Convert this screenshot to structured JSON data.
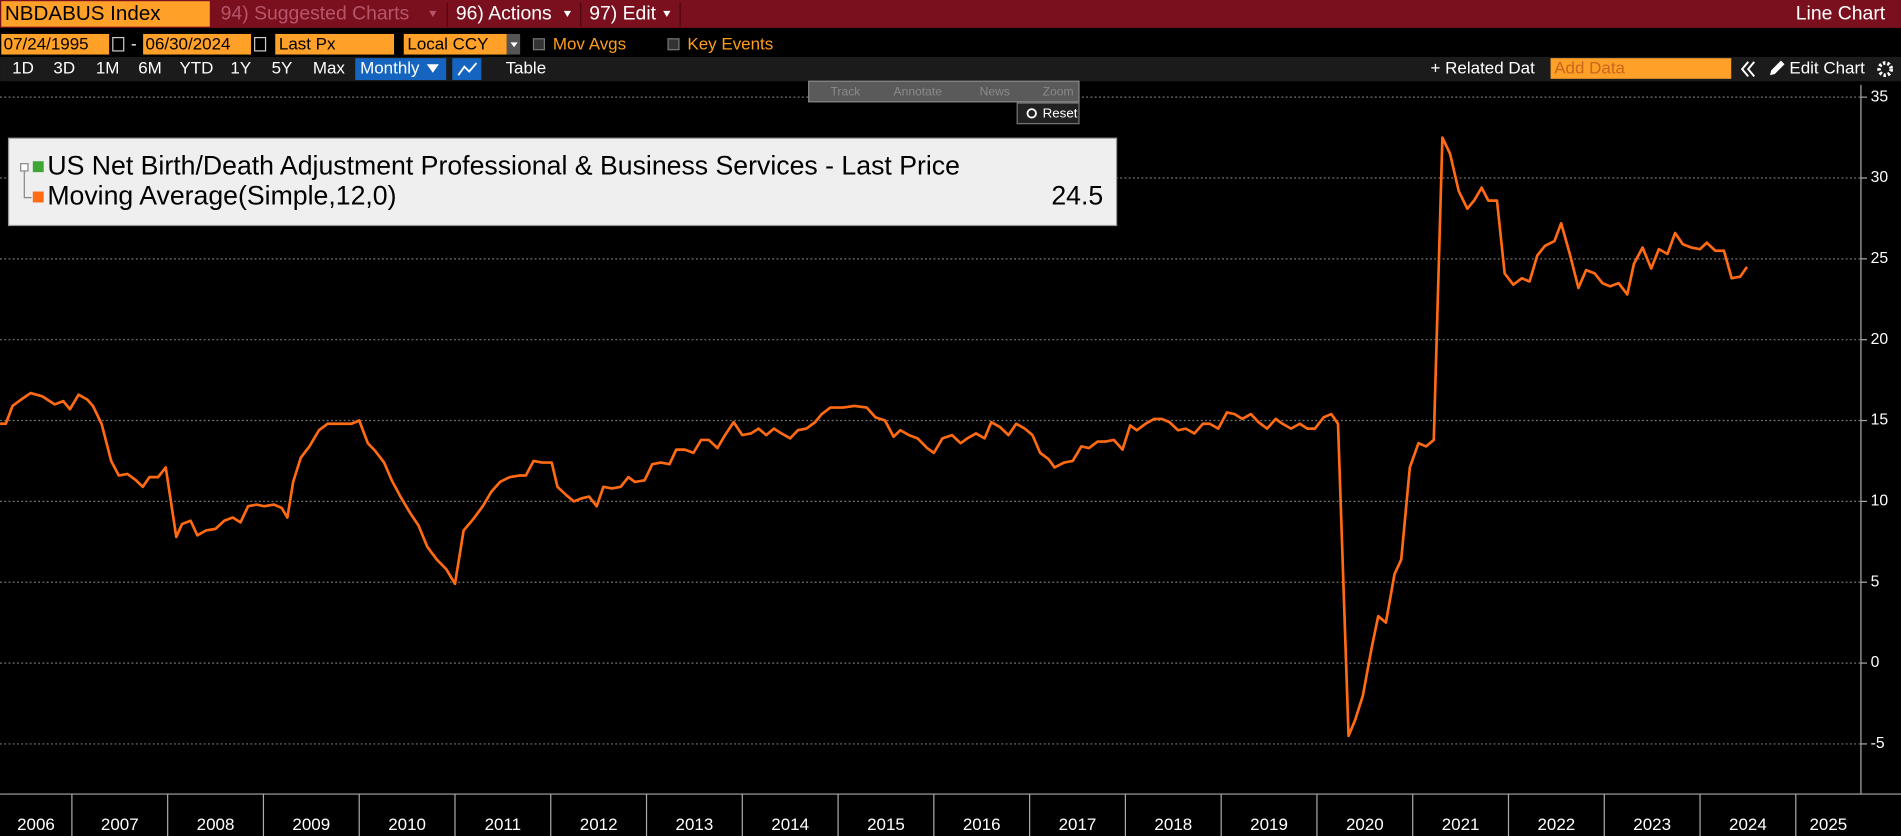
{
  "toolbar": {
    "ticker": "NBDABUS Index",
    "menus": [
      "94) Suggested Charts",
      "96) Actions",
      "97) Edit"
    ],
    "view": "Line Chart",
    "start_date": "07/24/1995",
    "date_sep": "-",
    "end_date": "06/30/2024",
    "field": "Last Px",
    "currency": "Local CCY",
    "options": [
      "Mov Avgs",
      "Key Events"
    ],
    "periods": [
      "1D",
      "3D",
      "1M",
      "6M",
      "YTD",
      "1Y",
      "5Y",
      "Max"
    ],
    "frequency": "Monthly",
    "table": "Table",
    "related": "+ Related Dat",
    "add_data": "Add Data",
    "edit_chart": "Edit Chart",
    "tools": [
      "Track",
      "Annotate",
      "News",
      "Zoom"
    ],
    "reset": "Reset"
  },
  "chart_data": {
    "type": "line",
    "legend_title": "US Net Birth/Death Adjustment Professional & Business Services - Last Price",
    "legend_title_color": "#3fa535",
    "last_value": 24.5,
    "x": [
      2006.25,
      2006.31,
      2006.38,
      2006.47,
      2006.57,
      2006.69,
      2006.82,
      2006.91,
      2006.98,
      2007.07,
      2007.16,
      2007.22,
      2007.31,
      2007.41,
      2007.49,
      2007.58,
      2007.67,
      2007.74,
      2007.81,
      2007.9,
      2007.98,
      2008.09,
      2008.15,
      2008.24,
      2008.31,
      2008.4,
      2008.5,
      2008.59,
      2008.68,
      2008.76,
      2008.84,
      2008.93,
      2009.01,
      2009.11,
      2009.19,
      2009.25,
      2009.31,
      2009.39,
      2009.48,
      2009.58,
      2009.67,
      2009.79,
      2009.92,
      2010.0,
      2010.09,
      2010.17,
      2010.26,
      2010.34,
      2010.43,
      2010.53,
      2010.62,
      2010.71,
      2010.81,
      2010.91,
      2011.0,
      2011.09,
      2011.19,
      2011.29,
      2011.38,
      2011.47,
      2011.57,
      2011.67,
      2011.74,
      2011.82,
      2011.91,
      2012.01,
      2012.07,
      2012.16,
      2012.24,
      2012.33,
      2012.4,
      2012.48,
      2012.55,
      2012.64,
      2012.73,
      2012.81,
      2012.88,
      2012.98,
      2013.06,
      2013.15,
      2013.24,
      2013.31,
      2013.4,
      2013.49,
      2013.57,
      2013.65,
      2013.74,
      2013.82,
      2013.91,
      2014.0,
      2014.09,
      2014.17,
      2014.25,
      2014.33,
      2014.41,
      2014.5,
      2014.58,
      2014.67,
      2014.76,
      2014.83,
      2014.92,
      2015.05,
      2015.17,
      2015.3,
      2015.39,
      2015.49,
      2015.58,
      2015.65,
      2015.74,
      2015.83,
      2015.93,
      2016.0,
      2016.09,
      2016.19,
      2016.28,
      2016.35,
      2016.44,
      2016.53,
      2016.6,
      2016.69,
      2016.78,
      2016.86,
      2016.95,
      2017.03,
      2017.11,
      2017.2,
      2017.26,
      2017.36,
      2017.45,
      2017.54,
      2017.62,
      2017.71,
      2017.79,
      2017.88,
      2017.97,
      2018.05,
      2018.12,
      2018.21,
      2018.3,
      2018.38,
      2018.46,
      2018.55,
      2018.63,
      2018.72,
      2018.81,
      2018.88,
      2018.97,
      2019.06,
      2019.14,
      2019.22,
      2019.31,
      2019.39,
      2019.48,
      2019.57,
      2019.64,
      2019.73,
      2019.82,
      2019.9,
      2019.98,
      2020.07,
      2020.15,
      2020.22,
      2020.33,
      2020.4,
      2020.48,
      2020.57,
      2020.64,
      2020.72,
      2020.81,
      2020.88,
      2020.97,
      2021.06,
      2021.14,
      2021.22,
      2021.31,
      2021.39,
      2021.48,
      2021.57,
      2021.64,
      2021.72,
      2021.79,
      2021.88,
      2021.96,
      2022.05,
      2022.14,
      2022.22,
      2022.3,
      2022.38,
      2022.48,
      2022.55,
      2022.64,
      2022.73,
      2022.81,
      2022.9,
      2022.98,
      2023.06,
      2023.15,
      2023.24,
      2023.31,
      2023.4,
      2023.49,
      2023.57,
      2023.66,
      2023.74,
      2023.82,
      2023.91,
      2024.0,
      2024.07,
      2024.16,
      2024.25,
      2024.33,
      2024.42,
      2024.49
    ],
    "series": [
      {
        "name": "Moving Average(Simple,12,0)",
        "color": "#ff6a13",
        "values": [
          14.8,
          14.8,
          15.9,
          16.3,
          16.7,
          16.5,
          16.0,
          16.2,
          15.7,
          16.6,
          16.3,
          15.9,
          14.8,
          12.5,
          11.6,
          11.7,
          11.3,
          10.9,
          11.5,
          11.5,
          12.1,
          7.8,
          8.6,
          8.8,
          7.9,
          8.2,
          8.3,
          8.8,
          9.0,
          8.7,
          9.7,
          9.8,
          9.7,
          9.8,
          9.6,
          9.0,
          11.2,
          12.7,
          13.4,
          14.4,
          14.8,
          14.8,
          14.8,
          15.0,
          13.6,
          13.1,
          12.4,
          11.3,
          10.3,
          9.3,
          8.5,
          7.2,
          6.4,
          5.8,
          4.9,
          8.2,
          8.9,
          9.7,
          10.6,
          11.2,
          11.5,
          11.6,
          11.6,
          12.5,
          12.4,
          12.4,
          10.9,
          10.4,
          10.0,
          10.2,
          10.3,
          9.7,
          10.9,
          10.8,
          10.9,
          11.5,
          11.2,
          11.3,
          12.3,
          12.4,
          12.3,
          13.2,
          13.2,
          13.0,
          13.8,
          13.8,
          13.3,
          14.1,
          14.9,
          14.1,
          14.2,
          14.5,
          14.1,
          14.5,
          14.2,
          13.9,
          14.4,
          14.5,
          14.9,
          15.4,
          15.8,
          15.8,
          15.9,
          15.8,
          15.2,
          15.0,
          14.0,
          14.4,
          14.1,
          13.9,
          13.3,
          13.0,
          13.9,
          14.1,
          13.6,
          13.9,
          14.2,
          13.9,
          14.9,
          14.6,
          14.1,
          14.8,
          14.5,
          14.1,
          13.0,
          12.6,
          12.1,
          12.4,
          12.5,
          13.4,
          13.3,
          13.7,
          13.7,
          13.8,
          13.2,
          14.7,
          14.4,
          14.8,
          15.1,
          15.1,
          14.9,
          14.4,
          14.5,
          14.2,
          14.8,
          14.8,
          14.5,
          15.5,
          15.4,
          15.1,
          15.4,
          14.9,
          14.5,
          15.1,
          14.8,
          14.5,
          14.8,
          14.5,
          14.5,
          15.2,
          15.4,
          14.8,
          -4.5,
          -3.5,
          -2.0,
          0.9,
          2.9,
          2.5,
          5.5,
          6.4,
          12.1,
          13.6,
          13.4,
          13.8,
          32.5,
          31.5,
          29.2,
          28.1,
          28.6,
          29.4,
          28.6,
          28.6,
          24.1,
          23.4,
          23.8,
          23.6,
          25.2,
          25.8,
          26.1,
          27.2,
          25.3,
          23.2,
          24.3,
          24.1,
          23.5,
          23.3,
          23.5,
          22.8,
          24.7,
          25.7,
          24.4,
          25.6,
          25.3,
          26.6,
          25.9,
          25.7,
          25.6,
          26.0,
          25.5,
          25.5,
          23.8,
          23.9,
          24.5
        ]
      }
    ],
    "xlim": [
      2006.25,
      2025.68
    ],
    "xticks": [
      2006,
      2007,
      2008,
      2009,
      2010,
      2011,
      2012,
      2013,
      2014,
      2015,
      2016,
      2017,
      2018,
      2019,
      2020,
      2021,
      2022,
      2023,
      2024,
      2025
    ],
    "ylim": [
      -8.1,
      35.76
    ],
    "yticks": [
      -5,
      0,
      5,
      10,
      15,
      20,
      25,
      30,
      35
    ],
    "grid": true
  }
}
